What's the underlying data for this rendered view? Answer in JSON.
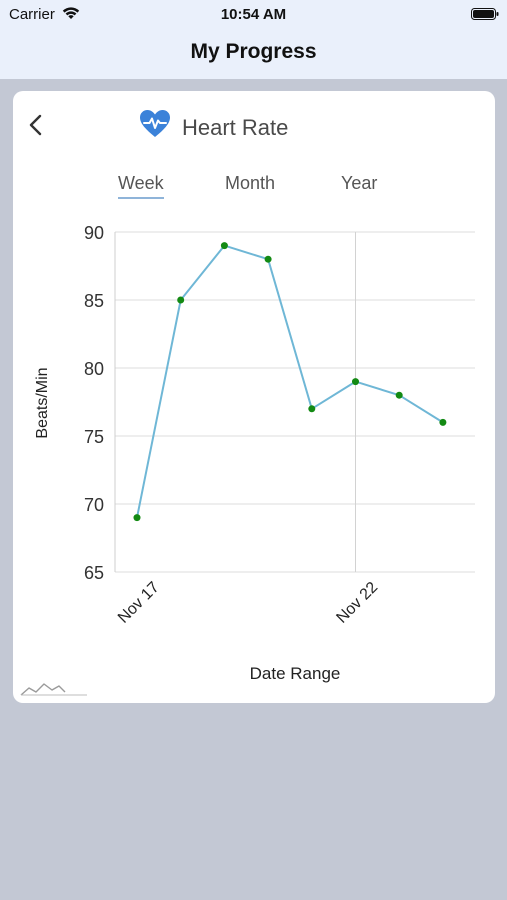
{
  "status_bar": {
    "carrier": "Carrier",
    "time": "10:54 AM",
    "wifi_icon": "wifi-icon",
    "battery_icon": "battery-icon"
  },
  "nav": {
    "title": "My Progress"
  },
  "card": {
    "back_icon": "chevron-left-icon",
    "header_icon": "heart-pulse-icon",
    "title": "Heart Rate",
    "accent_color": "#3b82d9",
    "tabs": [
      {
        "label": "Week",
        "active": true
      },
      {
        "label": "Month",
        "active": false
      },
      {
        "label": "Year",
        "active": false
      }
    ]
  },
  "chart_data": {
    "type": "line",
    "x": [
      "Nov 17",
      "Nov 18",
      "Nov 19",
      "Nov 20",
      "Nov 21",
      "Nov 22",
      "Nov 23",
      "Nov 24"
    ],
    "series": [
      {
        "values": [
          69,
          85,
          89,
          88,
          77,
          79,
          78,
          76
        ],
        "line_color": "#6fb7d6",
        "marker_color": "#138a13"
      }
    ],
    "x_tick_labels": [
      "Nov 17",
      "Nov 22"
    ],
    "y_ticks": [
      65,
      70,
      75,
      80,
      85,
      90
    ],
    "ylim": [
      65,
      90
    ],
    "xlabel": "Date Range",
    "ylabel": "Beats/Min",
    "grid": true,
    "legend": "none"
  },
  "footer": {
    "logo_icon": "mountain-logo-icon"
  }
}
